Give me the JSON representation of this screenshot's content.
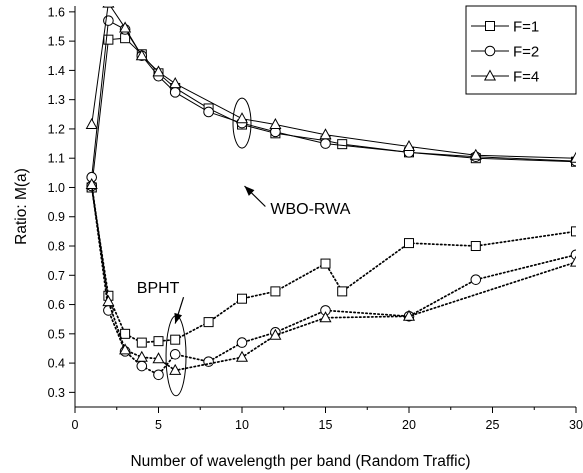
{
  "chart_data": {
    "type": "line",
    "xlabel": "Number of wavelength per band (Random Traffic)",
    "ylabel": "Ratio: M(a)",
    "xlim": [
      0,
      30
    ],
    "ylim": [
      0.25,
      1.62
    ],
    "xticks": [
      "0",
      "5",
      "10",
      "15",
      "20",
      "25",
      "30"
    ],
    "yticks": [
      "0.3",
      "0.4",
      "0.5",
      "0.6",
      "0.7",
      "0.8",
      "0.9",
      "1.0",
      "1.1",
      "1.2",
      "1.3",
      "1.4",
      "1.5",
      "1.6"
    ],
    "grid": false,
    "legend": {
      "position": "top-right",
      "entries": [
        "F=1",
        "F=2",
        "F=4"
      ]
    },
    "annotations": [
      "WBO-RWA",
      "BPHT"
    ],
    "series": [
      {
        "name": "F=1",
        "group": "WBO-RWA",
        "marker": "square",
        "style": "solid",
        "x": [
          1,
          2,
          3,
          4,
          5,
          6,
          8,
          10,
          12,
          15,
          16,
          20,
          24,
          30
        ],
        "y": [
          1.0,
          1.505,
          1.51,
          1.455,
          1.39,
          1.34,
          1.27,
          1.215,
          1.185,
          1.16,
          1.148,
          1.12,
          1.1,
          1.088
        ]
      },
      {
        "name": "F=2",
        "group": "WBO-RWA",
        "marker": "circle",
        "style": "solid",
        "x": [
          1,
          2,
          3,
          4,
          5,
          6,
          8,
          10,
          12,
          15,
          20,
          24,
          30
        ],
        "y": [
          1.035,
          1.57,
          1.54,
          1.45,
          1.38,
          1.325,
          1.258,
          1.22,
          1.19,
          1.15,
          1.12,
          1.105,
          1.09
        ]
      },
      {
        "name": "F=4",
        "group": "WBO-RWA",
        "marker": "triangle",
        "style": "solid",
        "x": [
          1,
          2,
          3,
          4,
          5,
          6,
          10,
          12,
          15,
          20,
          24,
          30
        ],
        "y": [
          1.215,
          1.63,
          1.545,
          1.45,
          1.395,
          1.355,
          1.235,
          1.215,
          1.18,
          1.14,
          1.11,
          1.1
        ]
      },
      {
        "name": "F=1",
        "group": "BPHT",
        "marker": "square",
        "style": "dotted",
        "x": [
          1,
          2,
          3,
          4,
          5,
          6,
          8,
          10,
          12,
          15,
          16,
          20,
          24,
          30
        ],
        "y": [
          1.0,
          0.63,
          0.5,
          0.47,
          0.475,
          0.48,
          0.54,
          0.62,
          0.645,
          0.74,
          0.645,
          0.81,
          0.8,
          0.85
        ]
      },
      {
        "name": "F=2",
        "group": "BPHT",
        "marker": "circle",
        "style": "dotted",
        "x": [
          1,
          2,
          3,
          4,
          5,
          6,
          8,
          10,
          12,
          15,
          20,
          24,
          30
        ],
        "y": [
          1.005,
          0.58,
          0.44,
          0.39,
          0.36,
          0.43,
          0.405,
          0.47,
          0.505,
          0.58,
          0.56,
          0.685,
          0.77
        ]
      },
      {
        "name": "F=4",
        "group": "BPHT",
        "marker": "triangle",
        "style": "dotted",
        "x": [
          1,
          2,
          3,
          4,
          5,
          6,
          10,
          12,
          15,
          20,
          30
        ],
        "y": [
          1.01,
          0.61,
          0.445,
          0.42,
          0.415,
          0.375,
          0.42,
          0.495,
          0.555,
          0.56,
          0.745
        ]
      }
    ]
  }
}
